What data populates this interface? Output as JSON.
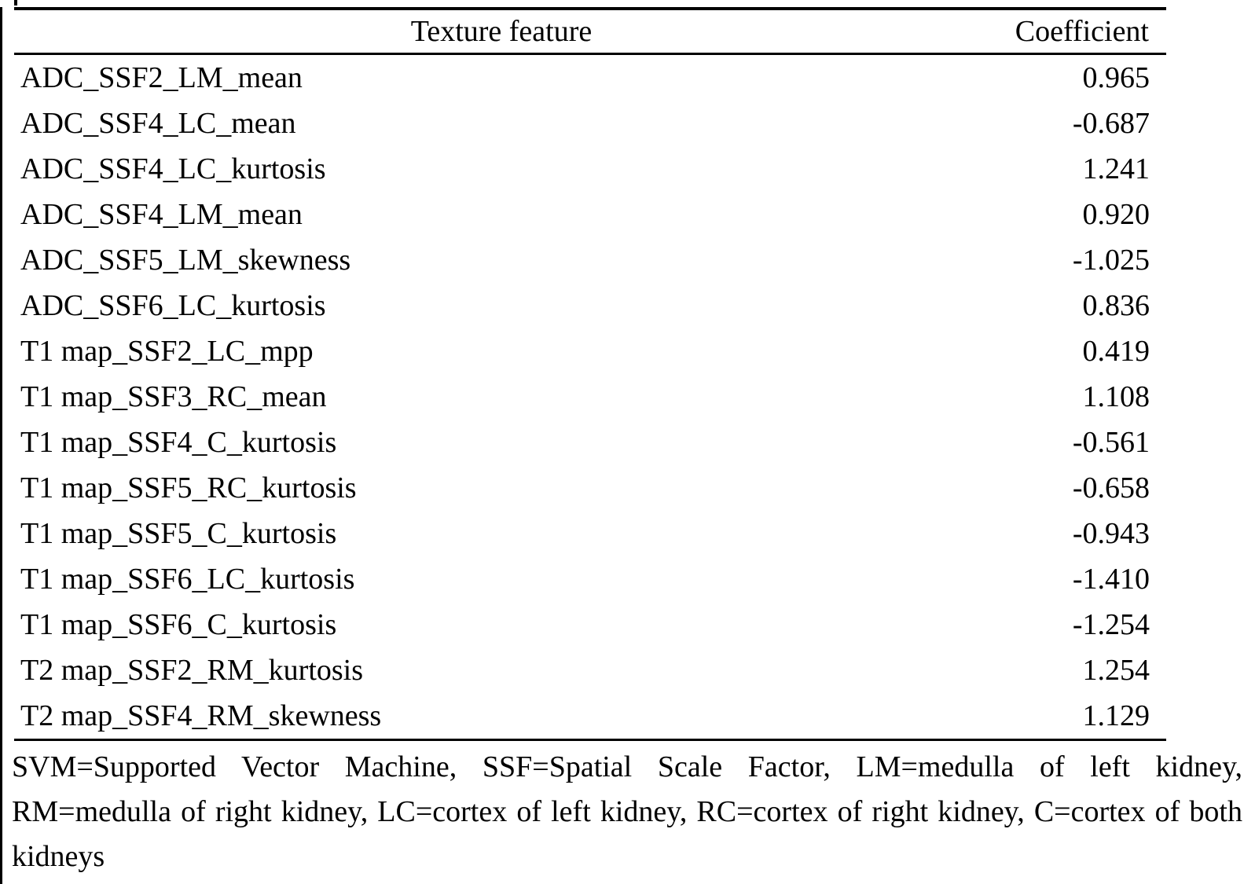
{
  "page": {
    "background": "#ffffff",
    "text_color": "#000000"
  },
  "table": {
    "header": {
      "feature": "Texture feature",
      "coefficient": "Coefficient"
    },
    "rows": [
      {
        "feature": "ADC_SSF2_LM_mean",
        "coefficient": "0.965"
      },
      {
        "feature": "ADC_SSF4_LC_mean",
        "coefficient": "-0.687"
      },
      {
        "feature": "ADC_SSF4_LC_kurtosis",
        "coefficient": "1.241"
      },
      {
        "feature": "ADC_SSF4_LM_mean",
        "coefficient": "0.920"
      },
      {
        "feature": "ADC_SSF5_LM_skewness",
        "coefficient": "-1.025"
      },
      {
        "feature": "ADC_SSF6_LC_kurtosis",
        "coefficient": "0.836"
      },
      {
        "feature": "T1 map_SSF2_LC_mpp",
        "coefficient": "0.419"
      },
      {
        "feature": "T1 map_SSF3_RC_mean",
        "coefficient": "1.108"
      },
      {
        "feature": "T1 map_SSF4_C_kurtosis",
        "coefficient": "-0.561"
      },
      {
        "feature": "T1 map_SSF5_RC_kurtosis",
        "coefficient": "-0.658"
      },
      {
        "feature": "T1 map_SSF5_C_kurtosis",
        "coefficient": "-0.943"
      },
      {
        "feature": "T1 map_SSF6_LC_kurtosis",
        "coefficient": "-1.410"
      },
      {
        "feature": "T1 map_SSF6_C_kurtosis",
        "coefficient": "-1.254"
      },
      {
        "feature": "T2 map_SSF2_RM_kurtosis",
        "coefficient": "1.254"
      },
      {
        "feature": "T2 map_SSF4_RM_skewness",
        "coefficient": "1.129"
      }
    ]
  },
  "footnote": "SVM=Supported Vector Machine, SSF=Spatial Scale Factor, LM=medulla of left kidney, RM=medulla of right kidney, LC=cortex of left kidney, RC=cortex of right kidney, C=cortex of both kidneys"
}
